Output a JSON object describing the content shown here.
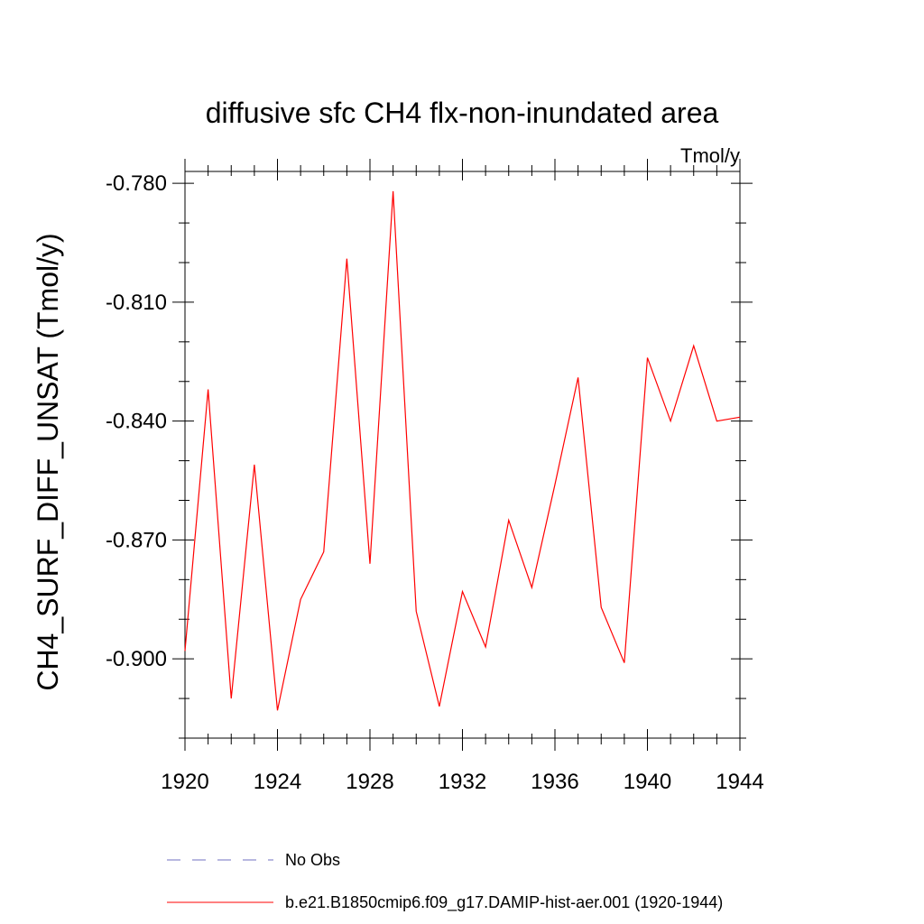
{
  "chart_data": {
    "type": "line",
    "title": "diffusive sfc CH4 flx-non-inundated area",
    "units_label": "Tmol/y",
    "ylabel": "CH4_SURF_DIFF_UNSAT  (Tmol/y)",
    "xlabel": "",
    "xlim": [
      1920,
      1944
    ],
    "ylim": [
      -0.92,
      -0.777
    ],
    "x_ticks": [
      1920,
      1924,
      1928,
      1932,
      1936,
      1940,
      1944
    ],
    "x_tick_labels": [
      "1920",
      "1924",
      "1928",
      "1932",
      "1936",
      "1940",
      "1944"
    ],
    "y_ticks": [
      -0.78,
      -0.81,
      -0.84,
      -0.87,
      -0.9
    ],
    "y_tick_labels": [
      "-0.780",
      "-0.810",
      "-0.840",
      "-0.870",
      "-0.900"
    ],
    "y_minor_step": 0.01,
    "x_minor_step": 1,
    "grid": false,
    "legend_position": "bottom",
    "series": [
      {
        "name": "b.e21.B1850cmip6.f09_g17.DAMIP-hist-aer.001 (1920-1944)",
        "color": "#ff0000",
        "style": "solid",
        "x": [
          1920,
          1921,
          1922,
          1923,
          1924,
          1925,
          1926,
          1927,
          1928,
          1929,
          1930,
          1931,
          1932,
          1933,
          1934,
          1935,
          1936,
          1937,
          1938,
          1939,
          1940,
          1941,
          1942,
          1943,
          1944
        ],
        "values": [
          -0.898,
          -0.832,
          -0.91,
          -0.851,
          -0.913,
          -0.885,
          -0.873,
          -0.799,
          -0.876,
          -0.782,
          -0.888,
          -0.912,
          -0.883,
          -0.897,
          -0.865,
          -0.882,
          -0.856,
          -0.829,
          -0.887,
          -0.901,
          -0.824,
          -0.84,
          -0.821,
          -0.84,
          -0.839
        ]
      }
    ],
    "legend": [
      {
        "label": "No Obs",
        "color": "#7070c0",
        "style": "dashed"
      },
      {
        "label": "b.e21.B1850cmip6.f09_g17.DAMIP-hist-aer.001 (1920-1944)",
        "color": "#ff0000",
        "style": "solid"
      }
    ]
  }
}
